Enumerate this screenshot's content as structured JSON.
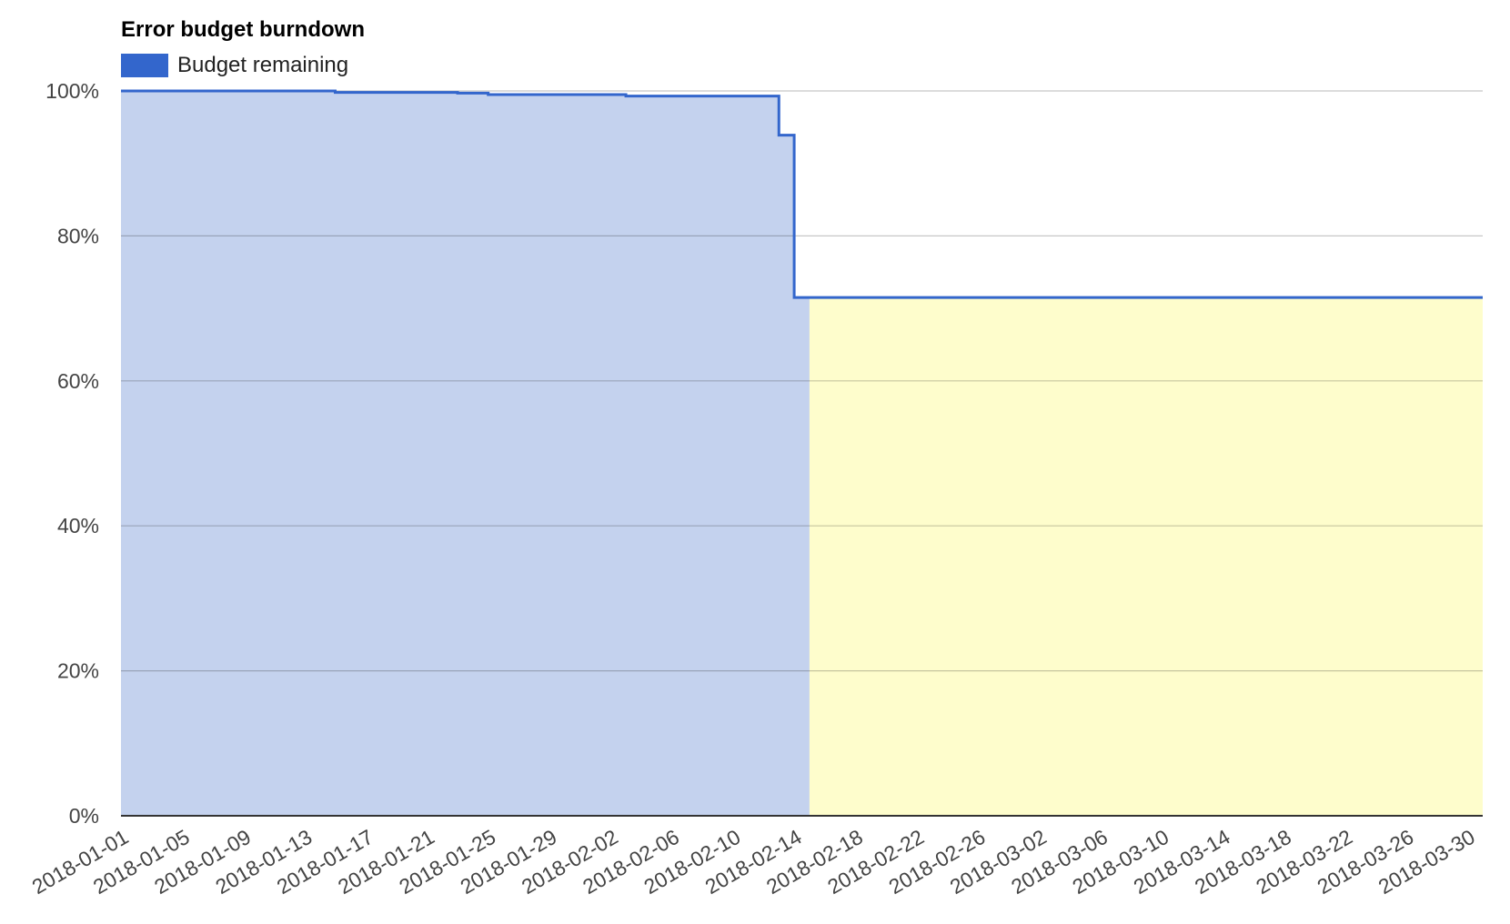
{
  "chart_data": {
    "type": "area",
    "title": "Error budget burndown",
    "xlabel": "",
    "ylabel": "",
    "ylim": [
      0,
      100
    ],
    "xlim": [
      "2018-01-01",
      "2018-03-31"
    ],
    "y_ticks": [
      "0%",
      "20%",
      "40%",
      "60%",
      "80%",
      "100%"
    ],
    "x_ticks": [
      "2018-01-01",
      "2018-01-05",
      "2018-01-09",
      "2018-01-13",
      "2018-01-17",
      "2018-01-21",
      "2018-01-25",
      "2018-01-29",
      "2018-02-02",
      "2018-02-06",
      "2018-02-10",
      "2018-02-14",
      "2018-02-18",
      "2018-02-22",
      "2018-02-26",
      "2018-03-02",
      "2018-03-06",
      "2018-03-10",
      "2018-03-14",
      "2018-03-18",
      "2018-03-22",
      "2018-03-26",
      "2018-03-30"
    ],
    "legend": {
      "position": "top-left",
      "entries": [
        "Budget remaining"
      ]
    },
    "grid": true,
    "series": [
      {
        "name": "Budget remaining",
        "color": "#3366cc",
        "fill": "#c4d2ee",
        "step": true,
        "points": [
          {
            "x": "2018-01-01",
            "y": 100.0
          },
          {
            "x": "2018-01-15",
            "y": 99.8
          },
          {
            "x": "2018-01-23",
            "y": 99.7
          },
          {
            "x": "2018-01-25",
            "y": 99.5
          },
          {
            "x": "2018-02-03",
            "y": 99.3
          },
          {
            "x": "2018-02-13",
            "y": 93.9
          },
          {
            "x": "2018-02-14",
            "y": 71.5
          },
          {
            "x": "2018-03-31",
            "y": 71.5
          }
        ]
      }
    ],
    "shaded_region": {
      "from": "2018-02-15",
      "to": "2018-03-31",
      "color": "#fefdcc"
    }
  }
}
